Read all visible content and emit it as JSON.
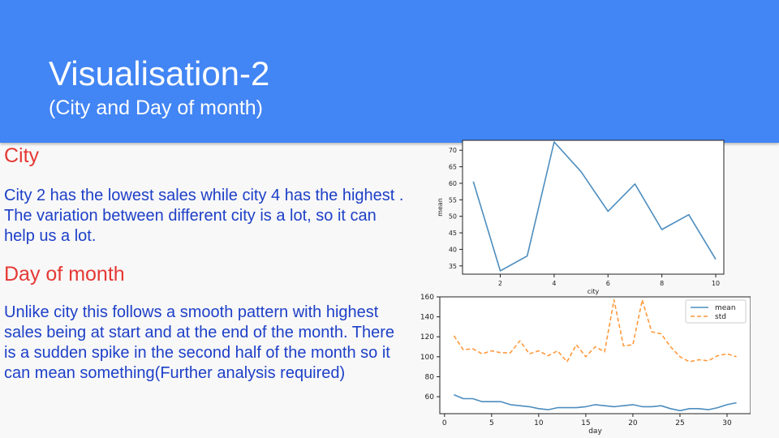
{
  "slide": {
    "title": "Visualisation-2",
    "subtitle": "(City and Day of month)",
    "sections": [
      {
        "heading": "City",
        "text": "City 2 has the lowest sales while city 4 has the highest . The variation between different city is a lot, so it can help us a lot."
      },
      {
        "heading": "Day of month",
        "text": "Unlike city this follows a smooth pattern with highest sales being at start and at the end of the month. There is a sudden spike in the second half of the month so it can mean something(Further analysis required)"
      }
    ],
    "colors": {
      "header": "#4285f4",
      "heading_text": "#e53935",
      "body_text": "#1e40c8",
      "series_mean": "#4c8dbf",
      "series_std": "#ff9a3c"
    }
  },
  "chart_data": [
    {
      "type": "line",
      "xlabel": "city",
      "ylabel": "mean",
      "xlim": [
        0.6,
        10.3
      ],
      "ylim": [
        32.5,
        73
      ],
      "xticks": [
        2,
        4,
        6,
        8,
        10
      ],
      "yticks": [
        35,
        40,
        45,
        50,
        55,
        60,
        65,
        70
      ],
      "grid": false,
      "x": [
        1,
        2,
        3,
        4,
        5,
        6,
        7,
        8,
        9,
        10
      ],
      "series": [
        {
          "values": [
            60.5,
            33.5,
            38,
            72.5,
            63.5,
            51.5,
            59.8,
            46,
            50.5,
            37
          ]
        }
      ]
    },
    {
      "type": "line",
      "xlabel": "day",
      "ylabel": "",
      "xlim": [
        -0.5,
        32.5
      ],
      "ylim": [
        43,
        160
      ],
      "xticks": [
        0,
        5,
        10,
        15,
        20,
        25,
        30
      ],
      "yticks": [
        60,
        80,
        100,
        120,
        140,
        160
      ],
      "grid": false,
      "legend": "top-right",
      "x": [
        1,
        2,
        3,
        4,
        5,
        6,
        7,
        8,
        9,
        10,
        11,
        12,
        13,
        14,
        15,
        16,
        17,
        18,
        19,
        20,
        21,
        22,
        23,
        24,
        25,
        26,
        27,
        28,
        29,
        30,
        31
      ],
      "series": [
        {
          "name": "mean",
          "style": "solid",
          "values": [
            62,
            58,
            58,
            55,
            55,
            55,
            52,
            51,
            50,
            48,
            47,
            49,
            49,
            49,
            50,
            52,
            51,
            50,
            51,
            52,
            50,
            50,
            51,
            48,
            46,
            48,
            48,
            47,
            49,
            52,
            54
          ]
        },
        {
          "name": "std",
          "style": "dashed",
          "values": [
            121,
            107,
            108,
            103,
            106,
            104,
            104,
            116,
            103,
            106,
            101,
            106,
            95,
            112,
            100,
            110,
            105,
            157,
            111,
            112,
            157,
            125,
            123,
            110,
            100,
            95,
            97,
            96,
            101,
            103,
            100
          ]
        }
      ]
    }
  ]
}
